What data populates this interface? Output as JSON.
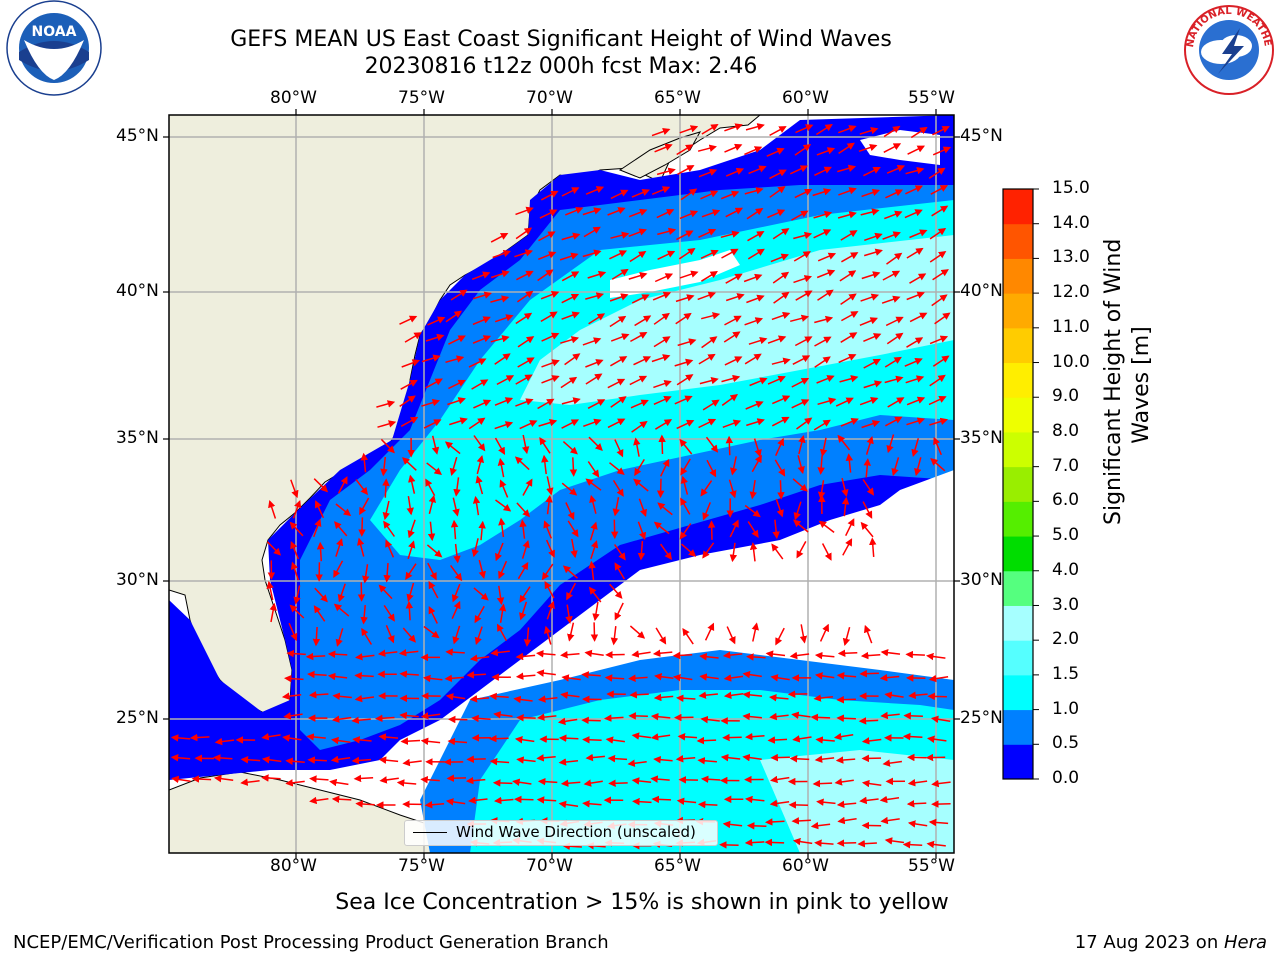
{
  "title": {
    "line1": "GEFS MEAN US East Coast Significant Height of Wind Waves",
    "line2": "20230816 t12z 000h fcst   Max: 2.46"
  },
  "logos": {
    "left": {
      "icon": "noaa-logo",
      "text": "NOAA"
    },
    "right": {
      "icon": "nws-logo",
      "text": "NATIONAL WEATHER SERVICE"
    }
  },
  "map": {
    "lon_labels": [
      "80°W",
      "75°W",
      "70°W",
      "65°W",
      "60°W",
      "55°W"
    ],
    "lat_labels": [
      "45°N",
      "40°N",
      "35°N",
      "30°N",
      "25°N"
    ],
    "legend": "Wind Wave Direction (unscaled)",
    "colors": {
      "land": "#eeeedd",
      "band_0": "#0000ff",
      "band_1": "#0080ff",
      "band_2": "#00ffff",
      "band_3": "#a6ffff",
      "arrow": "#ff0000"
    }
  },
  "colorbar": {
    "ticks": [
      "15.0",
      "14.0",
      "13.0",
      "12.0",
      "11.0",
      "10.0",
      "9.0",
      "8.0",
      "7.0",
      "6.0",
      "5.0",
      "4.0",
      "3.0",
      "2.0",
      "1.5",
      "1.0",
      "0.5",
      "0.0"
    ],
    "colors_bottom_to_top": [
      "#0000ff",
      "#0080ff",
      "#00ffff",
      "#55ffff",
      "#a6ffff",
      "#55ff7f",
      "#00dd00",
      "#55ee00",
      "#99ee00",
      "#ccff00",
      "#eeff00",
      "#ffee00",
      "#ffcc00",
      "#ffaa00",
      "#ff8800",
      "#ff5500",
      "#ff2200"
    ],
    "label": "Significant Height of Wind Waves [m]",
    "label_line1": "Significant Height of Wind",
    "label_line2": "Waves [m]"
  },
  "footer": {
    "note": "Sea Ice Concentration > 15% is shown in pink to yellow",
    "left": "NCEP/EMC/Verification Post Processing Product Generation Branch",
    "right_prefix": "17 Aug 2023 on ",
    "right_host": "Hera"
  }
}
